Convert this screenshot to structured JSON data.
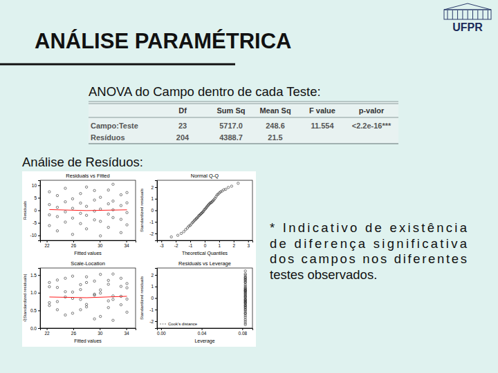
{
  "header": {
    "title": "ANÁLISE PARAMÉTRICA",
    "logo_text": "UFPR"
  },
  "anova": {
    "caption": "ANOVA do Campo dentro de cada Teste:",
    "columns": [
      "Df",
      "Sum Sq",
      "Mean Sq",
      "F value",
      "p-valor"
    ],
    "rows": [
      {
        "label": "Campo:Teste",
        "cells": [
          "23",
          "5717.0",
          "248.6",
          "11.554",
          "<2.2e-16***"
        ]
      },
      {
        "label": "Resíduos",
        "cells": [
          "204",
          "4388.7",
          "21.5"
        ]
      }
    ]
  },
  "residuals_caption": "Análise de Resíduos:",
  "note_lines": [
    "* Indicativo de existência",
    "de diferença significativa",
    "dos campos nos diferentes",
    "testes observados."
  ],
  "chart_data": [
    {
      "type": "scatter",
      "title": "Residuals vs Fitted",
      "x_label": "Fitted values",
      "y_label": "Residuals",
      "xlim": [
        21.0,
        35.4
      ],
      "ylim": [
        -12,
        12
      ],
      "xticks": [
        22,
        26,
        30,
        34
      ],
      "yticks": [
        -10,
        -5,
        0,
        5,
        10
      ],
      "series": [
        {
          "type": "scatter",
          "color": "#000000",
          "marker": "circle",
          "x": [
            22.4,
            22.4,
            22.4,
            22.4,
            23.6,
            23.6,
            23.6,
            23.6,
            24.8,
            24.8,
            24.8,
            24.8,
            25.9,
            25.9,
            25.9,
            25.9,
            27.1,
            27.1,
            27.1,
            27.1,
            28.0,
            28.0,
            28.0,
            28.0,
            29.2,
            29.2,
            29.2,
            29.2,
            30.1,
            30.1,
            30.1,
            30.1,
            31.3,
            31.3,
            31.3,
            31.3,
            32.0,
            32.0,
            32.0,
            32.0,
            33.2,
            33.2,
            33.2,
            33.2,
            34.1,
            34.1,
            34.1,
            34.1
          ],
          "values": [
            -6.1,
            -1.8,
            2.3,
            7.4,
            -8.2,
            -2.5,
            1.2,
            5.9,
            -4.7,
            -0.6,
            3.4,
            8.8,
            -9.6,
            -3.1,
            0.8,
            4.6,
            -5.3,
            -1.2,
            2.9,
            6.7,
            -7.4,
            -2.0,
            1.6,
            9.3,
            -3.8,
            -0.3,
            4.1,
            7.9,
            -10.2,
            -4.4,
            0.5,
            5.2,
            -6.8,
            -1.5,
            2.6,
            8.1,
            -2.9,
            0.2,
            3.7,
            10.4,
            -8.9,
            -3.6,
            1.9,
            6.2,
            -5.8,
            -0.9,
            3.0,
            7.1
          ]
        },
        {
          "type": "line",
          "color": "#ff0000",
          "x": [
            22.4,
            28.0,
            34.1
          ],
          "values": [
            0.3,
            -0.1,
            0.2
          ]
        }
      ]
    },
    {
      "type": "scatter",
      "title": "Normal Q-Q",
      "x_label": "Theoretical Quantiles",
      "y_label": "Standardized residuals",
      "xlim": [
        -3.3,
        3.3
      ],
      "ylim": [
        -2.6,
        2.6
      ],
      "xticks": [
        -3,
        -2,
        -1,
        0,
        1,
        2,
        3
      ],
      "yticks": [
        -2,
        -1,
        0,
        1,
        2
      ],
      "series": [
        {
          "type": "scatter",
          "color": "#000000",
          "marker": "circle",
          "x": [
            -2.31,
            -1.86,
            -1.63,
            -1.45,
            -1.32,
            -1.2,
            -1.1,
            -1.01,
            -0.93,
            -0.85,
            -0.78,
            -0.71,
            -0.64,
            -0.58,
            -0.52,
            -0.46,
            -0.4,
            -0.35,
            -0.29,
            -0.24,
            -0.18,
            -0.13,
            -0.08,
            -0.03,
            0.03,
            0.08,
            0.13,
            0.18,
            0.24,
            0.29,
            0.35,
            0.4,
            0.46,
            0.52,
            0.58,
            0.64,
            0.71,
            0.78,
            0.85,
            0.93,
            1.01,
            1.1,
            1.2,
            1.32,
            1.45,
            1.63,
            1.86,
            2.31
          ],
          "values": [
            -2.3,
            -2.16,
            -2.0,
            -1.85,
            -1.67,
            -1.53,
            -1.37,
            -1.31,
            -1.19,
            -1.06,
            -0.99,
            -0.86,
            -0.81,
            -0.7,
            -0.65,
            -0.56,
            -0.45,
            -0.41,
            -0.34,
            -0.27,
            -0.2,
            -0.14,
            -0.07,
            0.05,
            0.11,
            0.18,
            0.27,
            0.36,
            0.43,
            0.52,
            0.59,
            0.65,
            0.68,
            0.77,
            0.83,
            0.92,
            1.04,
            1.17,
            1.33,
            1.4,
            1.51,
            1.6,
            1.67,
            1.78,
            1.82,
            1.98,
            2.09,
            2.34
          ]
        }
      ]
    },
    {
      "type": "scatter",
      "title": "Scale-Location",
      "x_label": "Fitted values",
      "y_label": "√|Standardized residuals|",
      "xlim": [
        21.0,
        35.4
      ],
      "ylim": [
        0,
        1.7
      ],
      "xticks": [
        22,
        26,
        30,
        34
      ],
      "yticks": [
        {
          "value": 0,
          "label": "0.0"
        },
        {
          "value": 0.5,
          "label": "0.5"
        },
        {
          "value": 1,
          "label": "1.0"
        },
        {
          "value": 1.5,
          "label": "1.5"
        }
      ],
      "series": [
        {
          "type": "scatter",
          "color": "#000000",
          "marker": "circle",
          "x": [
            22.4,
            22.4,
            22.4,
            22.4,
            23.6,
            23.6,
            23.6,
            23.6,
            24.8,
            24.8,
            24.8,
            24.8,
            25.9,
            25.9,
            25.9,
            25.9,
            27.1,
            27.1,
            27.1,
            27.1,
            28.0,
            28.0,
            28.0,
            28.0,
            29.2,
            29.2,
            29.2,
            29.2,
            30.1,
            30.1,
            30.1,
            30.1,
            31.3,
            31.3,
            31.3,
            31.3,
            32.0,
            32.0,
            32.0,
            32.0,
            33.2,
            33.2,
            33.2,
            33.2,
            34.1,
            34.1,
            34.1,
            34.1
          ],
          "values": [
            1.17,
            0.64,
            0.72,
            1.29,
            1.36,
            0.75,
            0.52,
            1.15,
            1.03,
            0.37,
            0.88,
            1.41,
            1.47,
            0.84,
            0.42,
            1.02,
            1.09,
            0.52,
            0.81,
            1.23,
            1.29,
            0.67,
            0.6,
            1.45,
            0.93,
            0.26,
            0.96,
            1.33,
            1.52,
            0.99,
            0.33,
            1.08,
            1.24,
            0.58,
            0.77,
            1.35,
            0.81,
            0.22,
            0.91,
            1.53,
            1.41,
            0.9,
            0.66,
            1.18,
            1.14,
            0.45,
            0.82,
            1.26
          ]
        },
        {
          "type": "line",
          "color": "#ff0000",
          "x": [
            22.4,
            28.0,
            34.1
          ],
          "values": [
            0.88,
            0.86,
            0.9
          ]
        }
      ]
    },
    {
      "type": "scatter",
      "title": "Residuals vs Leverage",
      "x_label": "Leverage",
      "y_label": "Standardized residuals",
      "annotation": "Cook's distance",
      "xlim": [
        -0.004,
        0.09
      ],
      "ylim": [
        -2.6,
        2.6
      ],
      "xticks": [
        {
          "value": 0,
          "label": "0.00"
        },
        {
          "value": 0.04,
          "label": "0.04"
        },
        {
          "value": 0.08,
          "label": "0.08"
        }
      ],
      "yticks": [
        -2,
        -1,
        0,
        1,
        2
      ],
      "series": [
        {
          "type": "scatter",
          "color": "#000000",
          "marker": "circle",
          "x": [
            0.083,
            0.083,
            0.083,
            0.083,
            0.083,
            0.083,
            0.083,
            0.083,
            0.083,
            0.083,
            0.083,
            0.083,
            0.083,
            0.083,
            0.083,
            0.083,
            0.083,
            0.083,
            0.083,
            0.083,
            0.083,
            0.083,
            0.083,
            0.083,
            0.083,
            0.083,
            0.083,
            0.083,
            0.083,
            0.083,
            0.083,
            0.083,
            0.083,
            0.083,
            0.083,
            0.083,
            0.083,
            0.083,
            0.083,
            0.083,
            0.083,
            0.083,
            0.083,
            0.083,
            0.083,
            0.083,
            0.083,
            0.083
          ],
          "values": [
            -1.37,
            -0.41,
            0.52,
            1.67,
            -1.85,
            -0.56,
            0.27,
            1.33,
            -1.06,
            -0.14,
            0.77,
            1.98,
            -2.16,
            -0.7,
            0.18,
            1.04,
            -1.19,
            -0.27,
            0.65,
            1.51,
            -1.67,
            -0.45,
            0.36,
            2.09,
            -0.86,
            -0.07,
            0.92,
            1.78,
            -2.3,
            -0.99,
            0.11,
            1.17,
            -1.53,
            -0.34,
            0.59,
            1.82,
            -0.65,
            0.05,
            0.83,
            2.34,
            -2.0,
            -0.81,
            0.43,
            1.4,
            -1.31,
            -0.2,
            0.68,
            1.6
          ]
        }
      ]
    }
  ]
}
